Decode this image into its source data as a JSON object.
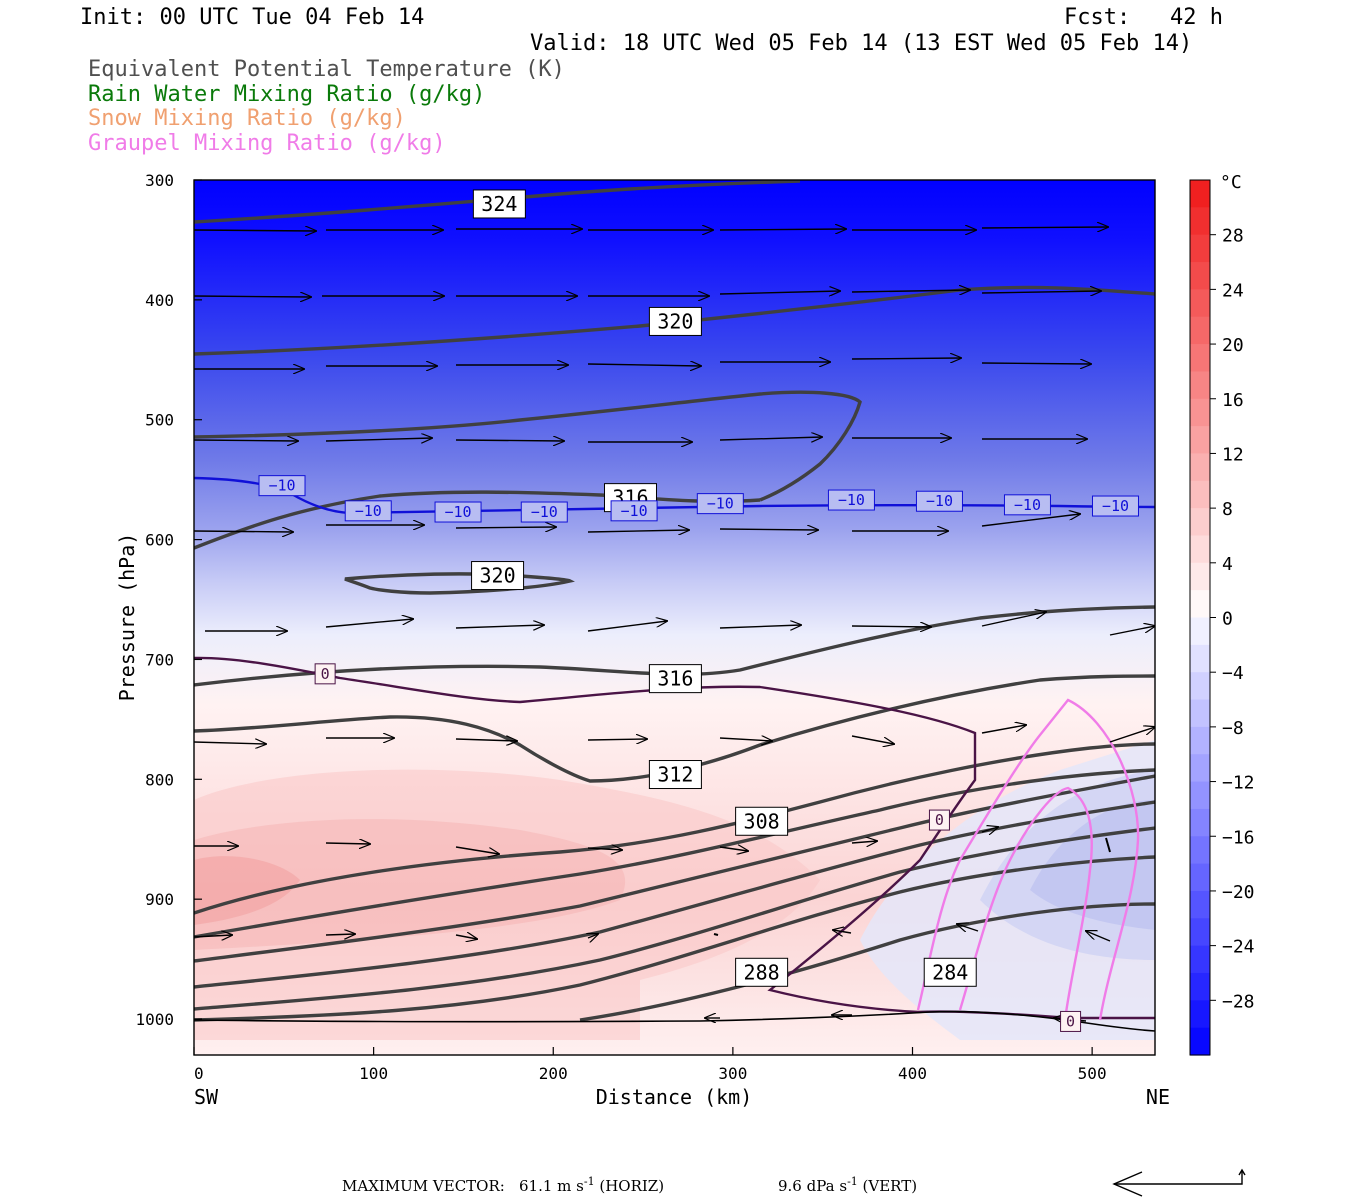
{
  "header": {
    "init": "Init: 00 UTC Tue 04 Feb 14",
    "fcst": "Fcst:   42 h",
    "valid": "Valid: 18 UTC Wed 05 Feb 14 (13 EST Wed 05 Feb 14)"
  },
  "legend": [
    {
      "text": "Equivalent Potential Temperature (K)",
      "color": "#505050"
    },
    {
      "text": "Rain Water Mixing Ratio (g/kg)",
      "color": "#0a7a0a"
    },
    {
      "text": "Snow Mixing Ratio (g/kg)",
      "color": "#f0a070"
    },
    {
      "text": "Graupel Mixing Ratio (g/kg)",
      "color": "#f07ce8"
    }
  ],
  "footer": {
    "max_vector_label": "MAXIMUM VECTOR:",
    "horiz_value": "61.1 m s",
    "horiz_unit": " (HORIZ)",
    "vert_value": "9.6 dPa s",
    "vert_unit": " (VERT)",
    "exp": "-1"
  },
  "colorbar": {
    "unit": "°C",
    "labels": [
      "28",
      "24",
      "20",
      "16",
      "12",
      "8",
      "4",
      "0",
      "−4",
      "−8",
      "−12",
      "−16",
      "−20",
      "−24",
      "−28"
    ],
    "label_values": [
      28,
      24,
      20,
      16,
      12,
      8,
      4,
      0,
      -4,
      -8,
      -12,
      -16,
      -20,
      -24,
      -28
    ],
    "range": [
      -32,
      32
    ],
    "step": 2
  },
  "chart_data": {
    "type": "cross-section",
    "xlabel": "Distance (km)",
    "ylabel": "Pressure (hPa)",
    "xlim": [
      0,
      535
    ],
    "ylim": [
      1030,
      300
    ],
    "x_ticks": [
      "0",
      "100",
      "200",
      "300",
      "400",
      "500"
    ],
    "x_tick_values": [
      0,
      100,
      200,
      300,
      400,
      500
    ],
    "y_ticks": [
      "300",
      "400",
      "500",
      "600",
      "700",
      "800",
      "900",
      "1000"
    ],
    "y_tick_values": [
      300,
      400,
      500,
      600,
      700,
      800,
      900,
      1000
    ],
    "x_end_labels": [
      "SW",
      "NE"
    ],
    "theta_e_labels": [
      {
        "text": "324",
        "x": 170,
        "p": 320
      },
      {
        "text": "320",
        "x": 268,
        "p": 418
      },
      {
        "text": "316",
        "x": 243,
        "p": 565
      },
      {
        "text": "320",
        "x": 169,
        "p": 630
      },
      {
        "text": "316",
        "x": 268,
        "p": 716
      },
      {
        "text": "312",
        "x": 268,
        "p": 796
      },
      {
        "text": "308",
        "x": 316,
        "p": 835
      },
      {
        "text": "288",
        "x": 316,
        "p": 961
      },
      {
        "text": "284",
        "x": 421,
        "p": 961
      }
    ],
    "temp_labels": [
      {
        "text": "−10",
        "x": 49,
        "p": 555
      },
      {
        "text": "−10",
        "x": 97,
        "p": 576
      },
      {
        "text": "−10",
        "x": 147,
        "p": 577
      },
      {
        "text": "−10",
        "x": 195,
        "p": 577
      },
      {
        "text": "−10",
        "x": 245,
        "p": 576
      },
      {
        "text": "−10",
        "x": 293,
        "p": 570
      },
      {
        "text": "−10",
        "x": 366,
        "p": 567
      },
      {
        "text": "−10",
        "x": 415,
        "p": 568
      },
      {
        "text": "−10",
        "x": 464,
        "p": 571
      },
      {
        "text": "−10",
        "x": 513,
        "p": 572
      },
      {
        "text": "0",
        "x": 73,
        "p": 712
      },
      {
        "text": "0",
        "x": 415,
        "p": 834
      },
      {
        "text": "0",
        "x": 488,
        "p": 1002
      }
    ]
  }
}
